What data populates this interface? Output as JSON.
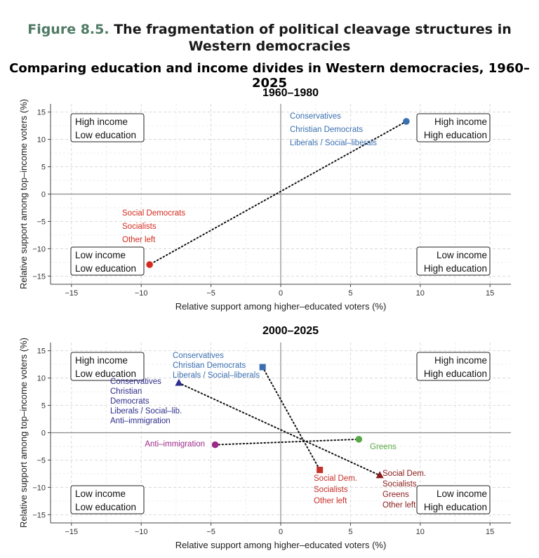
{
  "figure": {
    "number": "Figure 8.5.",
    "title_line1": "The fragmentation of political cleavage structures in",
    "title_line2": "Western democracies"
  },
  "main_title": "Comparing education and income divides in Western democracies, 1960–2025",
  "colors": {
    "blue": "#3a6fb0",
    "red": "#d42b1e",
    "navy": "#2e2e8c",
    "purple": "#9c2a8a",
    "green": "#58a946",
    "darkred": "#8b1a1a",
    "square_red": "#c8302a"
  },
  "chart_data": [
    {
      "type": "scatter",
      "title": "1960–1980",
      "xlabel": "Relative support among higher–educated voters (%)",
      "ylabel": "Relative support among top–income voters (%)",
      "xlim": [
        -16.5,
        16.5
      ],
      "ylim": [
        -16.5,
        16.5
      ],
      "xticks": [
        "−15",
        "−10",
        "−5",
        "0",
        "5",
        "10",
        "15"
      ],
      "yticks": [
        "15",
        "10",
        "5",
        "0",
        "−5",
        "−10",
        "−15"
      ],
      "grid": true,
      "quadrant_labels": [
        {
          "line1": "High income",
          "line2": "Low education",
          "quadrant": "top-left"
        },
        {
          "line1": "High income",
          "line2": "High education",
          "quadrant": "top-right"
        },
        {
          "line1": "Low income",
          "line2": "Low education",
          "quadrant": "bottom-left"
        },
        {
          "line1": "Low income",
          "line2": "High education",
          "quadrant": "bottom-right"
        }
      ],
      "points": [
        {
          "x": 9.0,
          "y": 13.3,
          "marker": "circle",
          "color": "#3a6fb0",
          "labels": [
            "Conservatives",
            "Christian Democrats",
            "Liberals / Social–liberals"
          ]
        },
        {
          "x": -9.4,
          "y": -12.9,
          "marker": "circle",
          "color": "#d42b1e",
          "labels": [
            "Social Democrats",
            "Socialists",
            "Other left"
          ]
        }
      ],
      "connections": [
        [
          0,
          1
        ]
      ]
    },
    {
      "type": "scatter",
      "title": "2000–2025",
      "xlabel": "Relative support among higher–educated voters (%)",
      "ylabel": "Relative support among top–income voters (%)",
      "xlim": [
        -16.5,
        16.5
      ],
      "ylim": [
        -16.5,
        16.5
      ],
      "xticks": [
        "−15",
        "−10",
        "−5",
        "0",
        "5",
        "10",
        "15"
      ],
      "yticks": [
        "15",
        "10",
        "5",
        "0",
        "−5",
        "−10",
        "−15"
      ],
      "grid": true,
      "quadrant_labels": [
        {
          "line1": "High income",
          "line2": "Low education",
          "quadrant": "top-left"
        },
        {
          "line1": "High income",
          "line2": "High education",
          "quadrant": "top-right"
        },
        {
          "line1": "Low income",
          "line2": "Low education",
          "quadrant": "bottom-left"
        },
        {
          "line1": "Low income",
          "line2": "High education",
          "quadrant": "bottom-right"
        }
      ],
      "points": [
        {
          "x": -1.3,
          "y": 12.0,
          "marker": "square",
          "color": "#3a6fb0",
          "labels": [
            "Conservatives",
            "Christian Democrats",
            "Liberals / Social–liberals"
          ]
        },
        {
          "x": 2.8,
          "y": -6.8,
          "marker": "square",
          "color": "#c8302a",
          "labels": [
            "Social Dem.",
            "Socialists",
            "Other left"
          ]
        },
        {
          "x": -7.3,
          "y": 9.1,
          "marker": "triangle",
          "color": "#2e2e8c",
          "labels": [
            "Conservatives",
            "Christian",
            "Democrats",
            "Liberals / Social–lib.",
            "Anti–immigration"
          ]
        },
        {
          "x": 7.1,
          "y": -7.8,
          "marker": "triangle",
          "color": "#8b1a1a",
          "labels": [
            "Social Dem.",
            "Socialists",
            "Greens",
            "Other left"
          ]
        },
        {
          "x": -4.7,
          "y": -2.2,
          "marker": "circle",
          "color": "#9c2a8a",
          "labels": [
            "Anti–immigration"
          ]
        },
        {
          "x": 5.6,
          "y": -1.2,
          "marker": "circle",
          "color": "#58a946",
          "labels": [
            "Greens"
          ]
        }
      ],
      "connections": [
        [
          0,
          1
        ],
        [
          2,
          3
        ],
        [
          4,
          5
        ]
      ]
    }
  ]
}
